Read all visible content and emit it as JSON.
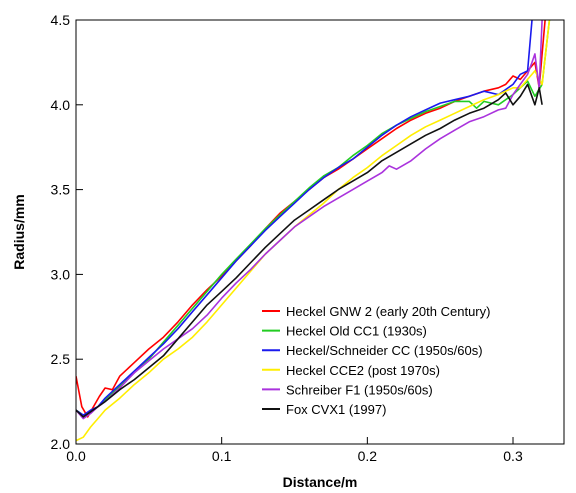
{
  "chart_data": {
    "type": "line",
    "title": "",
    "xlabel": "Distance/m",
    "ylabel": "Radius/mm",
    "xlim": [
      0.0,
      0.335
    ],
    "ylim": [
      2.0,
      4.5
    ],
    "xticks": [
      0.0,
      0.1,
      0.2,
      0.3
    ],
    "xtick_labels": [
      "0.0",
      "0.1",
      "0.2",
      "0.3"
    ],
    "yticks": [
      2.0,
      2.5,
      3.0,
      3.5,
      4.0,
      4.5
    ],
    "ytick_labels": [
      "2.0",
      "2.5",
      "3.0",
      "3.5",
      "4.0",
      "4.5"
    ],
    "grid": false,
    "legend_position": "bottom-right",
    "series": [
      {
        "name": "Heckel GNW 2 (early 20th Century)",
        "color": "#ff0000",
        "x": [
          0.0,
          0.004,
          0.008,
          0.012,
          0.016,
          0.02,
          0.025,
          0.03,
          0.04,
          0.05,
          0.06,
          0.07,
          0.08,
          0.09,
          0.1,
          0.11,
          0.12,
          0.13,
          0.14,
          0.15,
          0.16,
          0.17,
          0.18,
          0.19,
          0.2,
          0.21,
          0.22,
          0.23,
          0.24,
          0.25,
          0.26,
          0.27,
          0.28,
          0.29,
          0.295,
          0.3,
          0.305,
          0.31,
          0.315,
          0.318,
          0.32,
          0.322
        ],
        "y": [
          2.4,
          2.22,
          2.16,
          2.22,
          2.28,
          2.33,
          2.32,
          2.4,
          2.48,
          2.56,
          2.63,
          2.72,
          2.82,
          2.91,
          2.99,
          3.08,
          3.17,
          3.27,
          3.36,
          3.43,
          3.5,
          3.57,
          3.62,
          3.68,
          3.74,
          3.8,
          3.86,
          3.91,
          3.95,
          3.98,
          4.02,
          4.05,
          4.08,
          4.1,
          4.12,
          4.17,
          4.15,
          4.2,
          4.25,
          4.1,
          4.3,
          4.5
        ]
      },
      {
        "name": "Heckel Old CC1 (1930s)",
        "color": "#22cc22",
        "x": [
          0.0,
          0.005,
          0.01,
          0.015,
          0.02,
          0.03,
          0.04,
          0.05,
          0.06,
          0.07,
          0.08,
          0.09,
          0.1,
          0.11,
          0.12,
          0.13,
          0.14,
          0.15,
          0.16,
          0.17,
          0.18,
          0.19,
          0.2,
          0.21,
          0.22,
          0.23,
          0.24,
          0.25,
          0.26,
          0.27,
          0.275,
          0.28,
          0.29,
          0.3,
          0.305,
          0.31,
          0.315,
          0.32,
          0.325
        ],
        "y": [
          2.2,
          2.17,
          2.19,
          2.22,
          2.26,
          2.34,
          2.42,
          2.5,
          2.6,
          2.7,
          2.8,
          2.9,
          3.0,
          3.09,
          3.18,
          3.27,
          3.35,
          3.43,
          3.51,
          3.58,
          3.63,
          3.7,
          3.76,
          3.83,
          3.88,
          3.92,
          3.96,
          3.99,
          4.02,
          4.02,
          3.98,
          4.02,
          4.0,
          4.06,
          4.1,
          4.14,
          4.05,
          4.12,
          4.5
        ]
      },
      {
        "name": "Heckel/Schneider CC (1950s/60s)",
        "color": "#1a1aee",
        "x": [
          0.0,
          0.005,
          0.01,
          0.015,
          0.02,
          0.03,
          0.04,
          0.05,
          0.06,
          0.07,
          0.08,
          0.09,
          0.1,
          0.11,
          0.12,
          0.13,
          0.14,
          0.15,
          0.16,
          0.17,
          0.18,
          0.19,
          0.2,
          0.21,
          0.22,
          0.23,
          0.24,
          0.25,
          0.26,
          0.27,
          0.28,
          0.29,
          0.3,
          0.305,
          0.31,
          0.313
        ],
        "y": [
          2.2,
          2.17,
          2.2,
          2.22,
          2.27,
          2.35,
          2.43,
          2.51,
          2.59,
          2.68,
          2.78,
          2.88,
          2.98,
          3.08,
          3.17,
          3.26,
          3.34,
          3.42,
          3.5,
          3.57,
          3.63,
          3.68,
          3.75,
          3.82,
          3.88,
          3.93,
          3.97,
          4.01,
          4.03,
          4.05,
          4.08,
          4.06,
          4.12,
          4.18,
          4.2,
          4.5
        ]
      },
      {
        "name": "Heckel CCE2 (post 1970s)",
        "color": "#ffee00",
        "x": [
          0.0,
          0.005,
          0.01,
          0.015,
          0.02,
          0.03,
          0.04,
          0.05,
          0.06,
          0.07,
          0.08,
          0.09,
          0.1,
          0.11,
          0.12,
          0.13,
          0.14,
          0.15,
          0.16,
          0.17,
          0.18,
          0.19,
          0.2,
          0.21,
          0.22,
          0.23,
          0.24,
          0.25,
          0.26,
          0.27,
          0.28,
          0.29,
          0.3,
          0.305,
          0.31,
          0.315,
          0.32,
          0.325
        ],
        "y": [
          2.02,
          2.04,
          2.1,
          2.15,
          2.2,
          2.27,
          2.35,
          2.42,
          2.5,
          2.56,
          2.63,
          2.72,
          2.82,
          2.92,
          3.02,
          3.12,
          3.2,
          3.28,
          3.35,
          3.42,
          3.5,
          3.57,
          3.63,
          3.7,
          3.76,
          3.82,
          3.87,
          3.91,
          3.95,
          3.99,
          4.03,
          4.06,
          4.1,
          4.1,
          4.15,
          4.2,
          4.12,
          4.5
        ]
      },
      {
        "name": "Schreiber F1 (1950s/60s)",
        "color": "#aa33dd",
        "x": [
          0.0,
          0.005,
          0.01,
          0.015,
          0.02,
          0.03,
          0.04,
          0.05,
          0.06,
          0.07,
          0.08,
          0.09,
          0.1,
          0.11,
          0.12,
          0.13,
          0.14,
          0.15,
          0.16,
          0.17,
          0.18,
          0.19,
          0.2,
          0.21,
          0.215,
          0.22,
          0.23,
          0.24,
          0.25,
          0.26,
          0.27,
          0.28,
          0.29,
          0.295,
          0.3,
          0.305,
          0.31,
          0.313,
          0.315,
          0.318,
          0.32
        ],
        "y": [
          2.2,
          2.15,
          2.18,
          2.22,
          2.25,
          2.33,
          2.42,
          2.49,
          2.56,
          2.62,
          2.68,
          2.76,
          2.86,
          2.95,
          3.03,
          3.12,
          3.2,
          3.28,
          3.34,
          3.4,
          3.45,
          3.5,
          3.55,
          3.6,
          3.64,
          3.62,
          3.67,
          3.74,
          3.8,
          3.85,
          3.9,
          3.93,
          3.97,
          3.98,
          4.06,
          4.12,
          4.18,
          4.25,
          4.3,
          4.1,
          4.5
        ]
      },
      {
        "name": "Fox CVX1 (1997)",
        "color": "#111111",
        "x": [
          0.0,
          0.005,
          0.01,
          0.015,
          0.02,
          0.03,
          0.04,
          0.05,
          0.06,
          0.07,
          0.08,
          0.09,
          0.1,
          0.11,
          0.12,
          0.13,
          0.14,
          0.15,
          0.16,
          0.17,
          0.18,
          0.19,
          0.2,
          0.21,
          0.22,
          0.23,
          0.24,
          0.25,
          0.26,
          0.27,
          0.28,
          0.29,
          0.295,
          0.3,
          0.305,
          0.31,
          0.315,
          0.318,
          0.32
        ],
        "y": [
          2.2,
          2.16,
          2.19,
          2.22,
          2.25,
          2.32,
          2.38,
          2.45,
          2.52,
          2.62,
          2.72,
          2.82,
          2.9,
          2.98,
          3.07,
          3.16,
          3.24,
          3.32,
          3.38,
          3.44,
          3.5,
          3.55,
          3.6,
          3.67,
          3.72,
          3.77,
          3.82,
          3.86,
          3.91,
          3.95,
          3.98,
          4.03,
          4.07,
          4.0,
          4.05,
          4.12,
          4.0,
          4.1,
          4.0
        ]
      }
    ]
  }
}
